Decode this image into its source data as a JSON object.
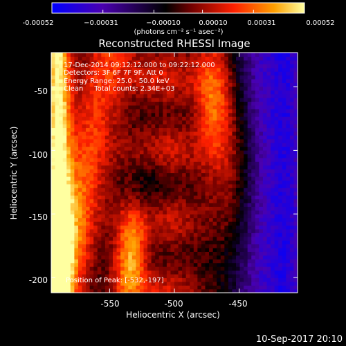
{
  "chart_data": {
    "type": "heatmap",
    "title": "Reconstructed RHESSI Image",
    "xlabel": "Heliocentric X (arcsec)",
    "ylabel": "Heliocentric Y (arcsec)",
    "xlim": [
      -595,
      -405
    ],
    "ylim": [
      -212,
      -23
    ],
    "x_ticks": [
      -550,
      -500,
      -450
    ],
    "x_tick_labels": [
      "-550",
      "-500",
      "-450"
    ],
    "y_ticks": [
      -50,
      -100,
      -150,
      -200
    ],
    "y_tick_labels": [
      "-50",
      "-100",
      "-150",
      "-200"
    ],
    "colorbar": {
      "min": -0.00052,
      "max": 0.00052,
      "ticks": [
        -0.00052,
        -0.00031,
        -0.0001,
        0.0001,
        0.00031,
        0.00052
      ],
      "tick_labels": [
        "-0.00052",
        "−0.00031",
        "−0.00010",
        "0.00010",
        "0.00031",
        "0.00052"
      ],
      "units": "(photons cm⁻² s⁻¹ asec⁻²)",
      "colors": [
        "#0000ff",
        "#4a00b0",
        "#000000",
        "#8a0000",
        "#ff2000",
        "#ff9a00",
        "#ffff80"
      ]
    },
    "annotations": [
      "17-Dec-2014 09:12:12.000 to 09:22:12.000",
      "Detectors: 3F 6F 7F 9F, Att 0",
      "Energy Range: 25.0 - 50.0 keV",
      "Clean     Total counts: 2.34E+03"
    ],
    "peak_label": "Position of Peak: [-532,-197]",
    "peak": [
      -532,
      -197
    ]
  },
  "footer": {
    "timestamp": "10-Sep-2017 20:10"
  }
}
